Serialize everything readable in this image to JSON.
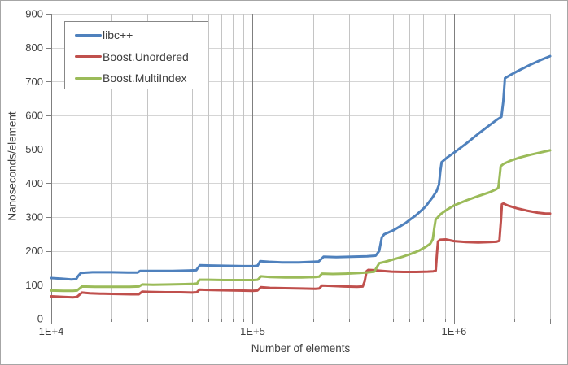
{
  "chart_data": {
    "type": "line",
    "title": "",
    "xlabel": "Number of elements",
    "ylabel": "Nanoseconds/element",
    "x_scale": "log",
    "xlim": [
      10000,
      3000000
    ],
    "ylim": [
      0,
      900
    ],
    "grid": true,
    "legend_position": "top-left",
    "x_major_ticks": [
      {
        "value": 10000,
        "label": "1E+4"
      },
      {
        "value": 100000,
        "label": "1E+5"
      },
      {
        "value": 1000000,
        "label": "1E+6"
      }
    ],
    "x_minor_ticks": [
      20000,
      30000,
      40000,
      50000,
      60000,
      70000,
      80000,
      90000,
      200000,
      300000,
      400000,
      500000,
      600000,
      700000,
      800000,
      900000,
      2000000
    ],
    "y_ticks": [
      {
        "value": 0,
        "label": "0"
      },
      {
        "value": 100,
        "label": "100"
      },
      {
        "value": 200,
        "label": "200"
      },
      {
        "value": 300,
        "label": "300"
      },
      {
        "value": 400,
        "label": "400"
      },
      {
        "value": 500,
        "label": "500"
      },
      {
        "value": 600,
        "label": "600"
      },
      {
        "value": 700,
        "label": "700"
      },
      {
        "value": 800,
        "label": "800"
      },
      {
        "value": 900,
        "label": "900"
      }
    ],
    "series": [
      {
        "name": "libc++",
        "color": "#4F81BD",
        "points": [
          [
            10000,
            120
          ],
          [
            11200,
            118
          ],
          [
            12600,
            116
          ],
          [
            13300,
            117
          ],
          [
            13600,
            126
          ],
          [
            14000,
            135
          ],
          [
            16000,
            137
          ],
          [
            20000,
            137
          ],
          [
            24000,
            136
          ],
          [
            26800,
            136
          ],
          [
            27600,
            141
          ],
          [
            32000,
            141
          ],
          [
            40000,
            141
          ],
          [
            48000,
            142
          ],
          [
            52500,
            143
          ],
          [
            53500,
            150
          ],
          [
            54800,
            158
          ],
          [
            62000,
            157
          ],
          [
            75000,
            156
          ],
          [
            90000,
            155
          ],
          [
            102000,
            155
          ],
          [
            106000,
            157
          ],
          [
            109000,
            170
          ],
          [
            120000,
            168
          ],
          [
            140000,
            166
          ],
          [
            170000,
            166
          ],
          [
            200000,
            168
          ],
          [
            213000,
            169
          ],
          [
            219000,
            176
          ],
          [
            225000,
            183
          ],
          [
            260000,
            182
          ],
          [
            310000,
            183
          ],
          [
            370000,
            184
          ],
          [
            408000,
            186
          ],
          [
            425000,
            200
          ],
          [
            438000,
            240
          ],
          [
            450000,
            249
          ],
          [
            500000,
            261
          ],
          [
            570000,
            281
          ],
          [
            650000,
            306
          ],
          [
            720000,
            330
          ],
          [
            780000,
            357
          ],
          [
            820000,
            377
          ],
          [
            842000,
            395
          ],
          [
            855000,
            435
          ],
          [
            868000,
            462
          ],
          [
            930000,
            477
          ],
          [
            1000000,
            490
          ],
          [
            1150000,
            517
          ],
          [
            1320000,
            546
          ],
          [
            1500000,
            571
          ],
          [
            1650000,
            589
          ],
          [
            1720000,
            596
          ],
          [
            1755000,
            640
          ],
          [
            1790000,
            710
          ],
          [
            1900000,
            719
          ],
          [
            2100000,
            733
          ],
          [
            2400000,
            750
          ],
          [
            2700000,
            764
          ],
          [
            3000000,
            775
          ]
        ]
      },
      {
        "name": "Boost.Unordered",
        "color": "#C0504D",
        "points": [
          [
            10000,
            66
          ],
          [
            11500,
            64
          ],
          [
            12800,
            63
          ],
          [
            13400,
            64
          ],
          [
            14200,
            77
          ],
          [
            15500,
            75
          ],
          [
            17500,
            74
          ],
          [
            21000,
            73
          ],
          [
            25000,
            72
          ],
          [
            27200,
            72
          ],
          [
            28300,
            80
          ],
          [
            31000,
            79
          ],
          [
            37000,
            78
          ],
          [
            44000,
            78
          ],
          [
            50000,
            77
          ],
          [
            52800,
            78
          ],
          [
            54500,
            86
          ],
          [
            60000,
            85
          ],
          [
            70000,
            84
          ],
          [
            85000,
            83
          ],
          [
            100000,
            82
          ],
          [
            105500,
            83
          ],
          [
            110000,
            93
          ],
          [
            122000,
            91
          ],
          [
            145000,
            90
          ],
          [
            175000,
            89
          ],
          [
            205000,
            88
          ],
          [
            214000,
            89
          ],
          [
            221000,
            98
          ],
          [
            245000,
            97
          ],
          [
            285000,
            95
          ],
          [
            330000,
            94
          ],
          [
            352000,
            95
          ],
          [
            360000,
            110
          ],
          [
            368000,
            140
          ],
          [
            375000,
            144
          ],
          [
            400000,
            143
          ],
          [
            440000,
            141
          ],
          [
            490000,
            139
          ],
          [
            560000,
            138
          ],
          [
            650000,
            138
          ],
          [
            740000,
            139
          ],
          [
            790000,
            140
          ],
          [
            812000,
            142
          ],
          [
            822000,
            190
          ],
          [
            832000,
            228
          ],
          [
            855000,
            233
          ],
          [
            910000,
            234
          ],
          [
            1000000,
            229
          ],
          [
            1150000,
            226
          ],
          [
            1320000,
            225
          ],
          [
            1500000,
            226
          ],
          [
            1620000,
            227
          ],
          [
            1680000,
            230
          ],
          [
            1710000,
            290
          ],
          [
            1730000,
            338
          ],
          [
            1760000,
            340
          ],
          [
            1850000,
            334
          ],
          [
            2050000,
            326
          ],
          [
            2300000,
            319
          ],
          [
            2600000,
            313
          ],
          [
            2850000,
            310
          ],
          [
            3000000,
            310
          ]
        ]
      },
      {
        "name": "Boost.MultiIndex",
        "color": "#9BBB59",
        "points": [
          [
            10000,
            83
          ],
          [
            11500,
            82
          ],
          [
            12800,
            82
          ],
          [
            13400,
            83
          ],
          [
            14200,
            95
          ],
          [
            16500,
            94
          ],
          [
            20000,
            94
          ],
          [
            24500,
            94
          ],
          [
            27200,
            95
          ],
          [
            28300,
            101
          ],
          [
            32000,
            100
          ],
          [
            39000,
            101
          ],
          [
            46000,
            102
          ],
          [
            51000,
            103
          ],
          [
            53000,
            104
          ],
          [
            54500,
            115
          ],
          [
            60000,
            115
          ],
          [
            72000,
            114
          ],
          [
            88000,
            114
          ],
          [
            101000,
            114
          ],
          [
            106000,
            115
          ],
          [
            110000,
            125
          ],
          [
            122000,
            123
          ],
          [
            145000,
            122
          ],
          [
            175000,
            122
          ],
          [
            205000,
            123
          ],
          [
            214000,
            124
          ],
          [
            221000,
            133
          ],
          [
            250000,
            132
          ],
          [
            290000,
            133
          ],
          [
            340000,
            135
          ],
          [
            380000,
            137
          ],
          [
            402000,
            139
          ],
          [
            412000,
            150
          ],
          [
            425000,
            164
          ],
          [
            455000,
            168
          ],
          [
            500000,
            175
          ],
          [
            555000,
            183
          ],
          [
            615000,
            192
          ],
          [
            670000,
            201
          ],
          [
            720000,
            211
          ],
          [
            762000,
            221
          ],
          [
            785000,
            235
          ],
          [
            798000,
            268
          ],
          [
            810000,
            292
          ],
          [
            860000,
            309
          ],
          [
            930000,
            323
          ],
          [
            1000000,
            334
          ],
          [
            1150000,
            349
          ],
          [
            1320000,
            362
          ],
          [
            1500000,
            373
          ],
          [
            1620000,
            382
          ],
          [
            1660000,
            387
          ],
          [
            1685000,
            420
          ],
          [
            1705000,
            450
          ],
          [
            1760000,
            457
          ],
          [
            1900000,
            466
          ],
          [
            2100000,
            475
          ],
          [
            2400000,
            484
          ],
          [
            2700000,
            491
          ],
          [
            3000000,
            497
          ]
        ]
      }
    ]
  },
  "styles": {
    "background": "#FFFFFF",
    "chart_border_color": "#A6A6A6",
    "grid_color": "#D5D5D5",
    "minor_grid_color": "#C4C4C4",
    "major_grid_color": "#7F7F7F",
    "axis_color": "#7F7F7F",
    "text_color": "#404040",
    "legend_border_color": "#878787"
  }
}
